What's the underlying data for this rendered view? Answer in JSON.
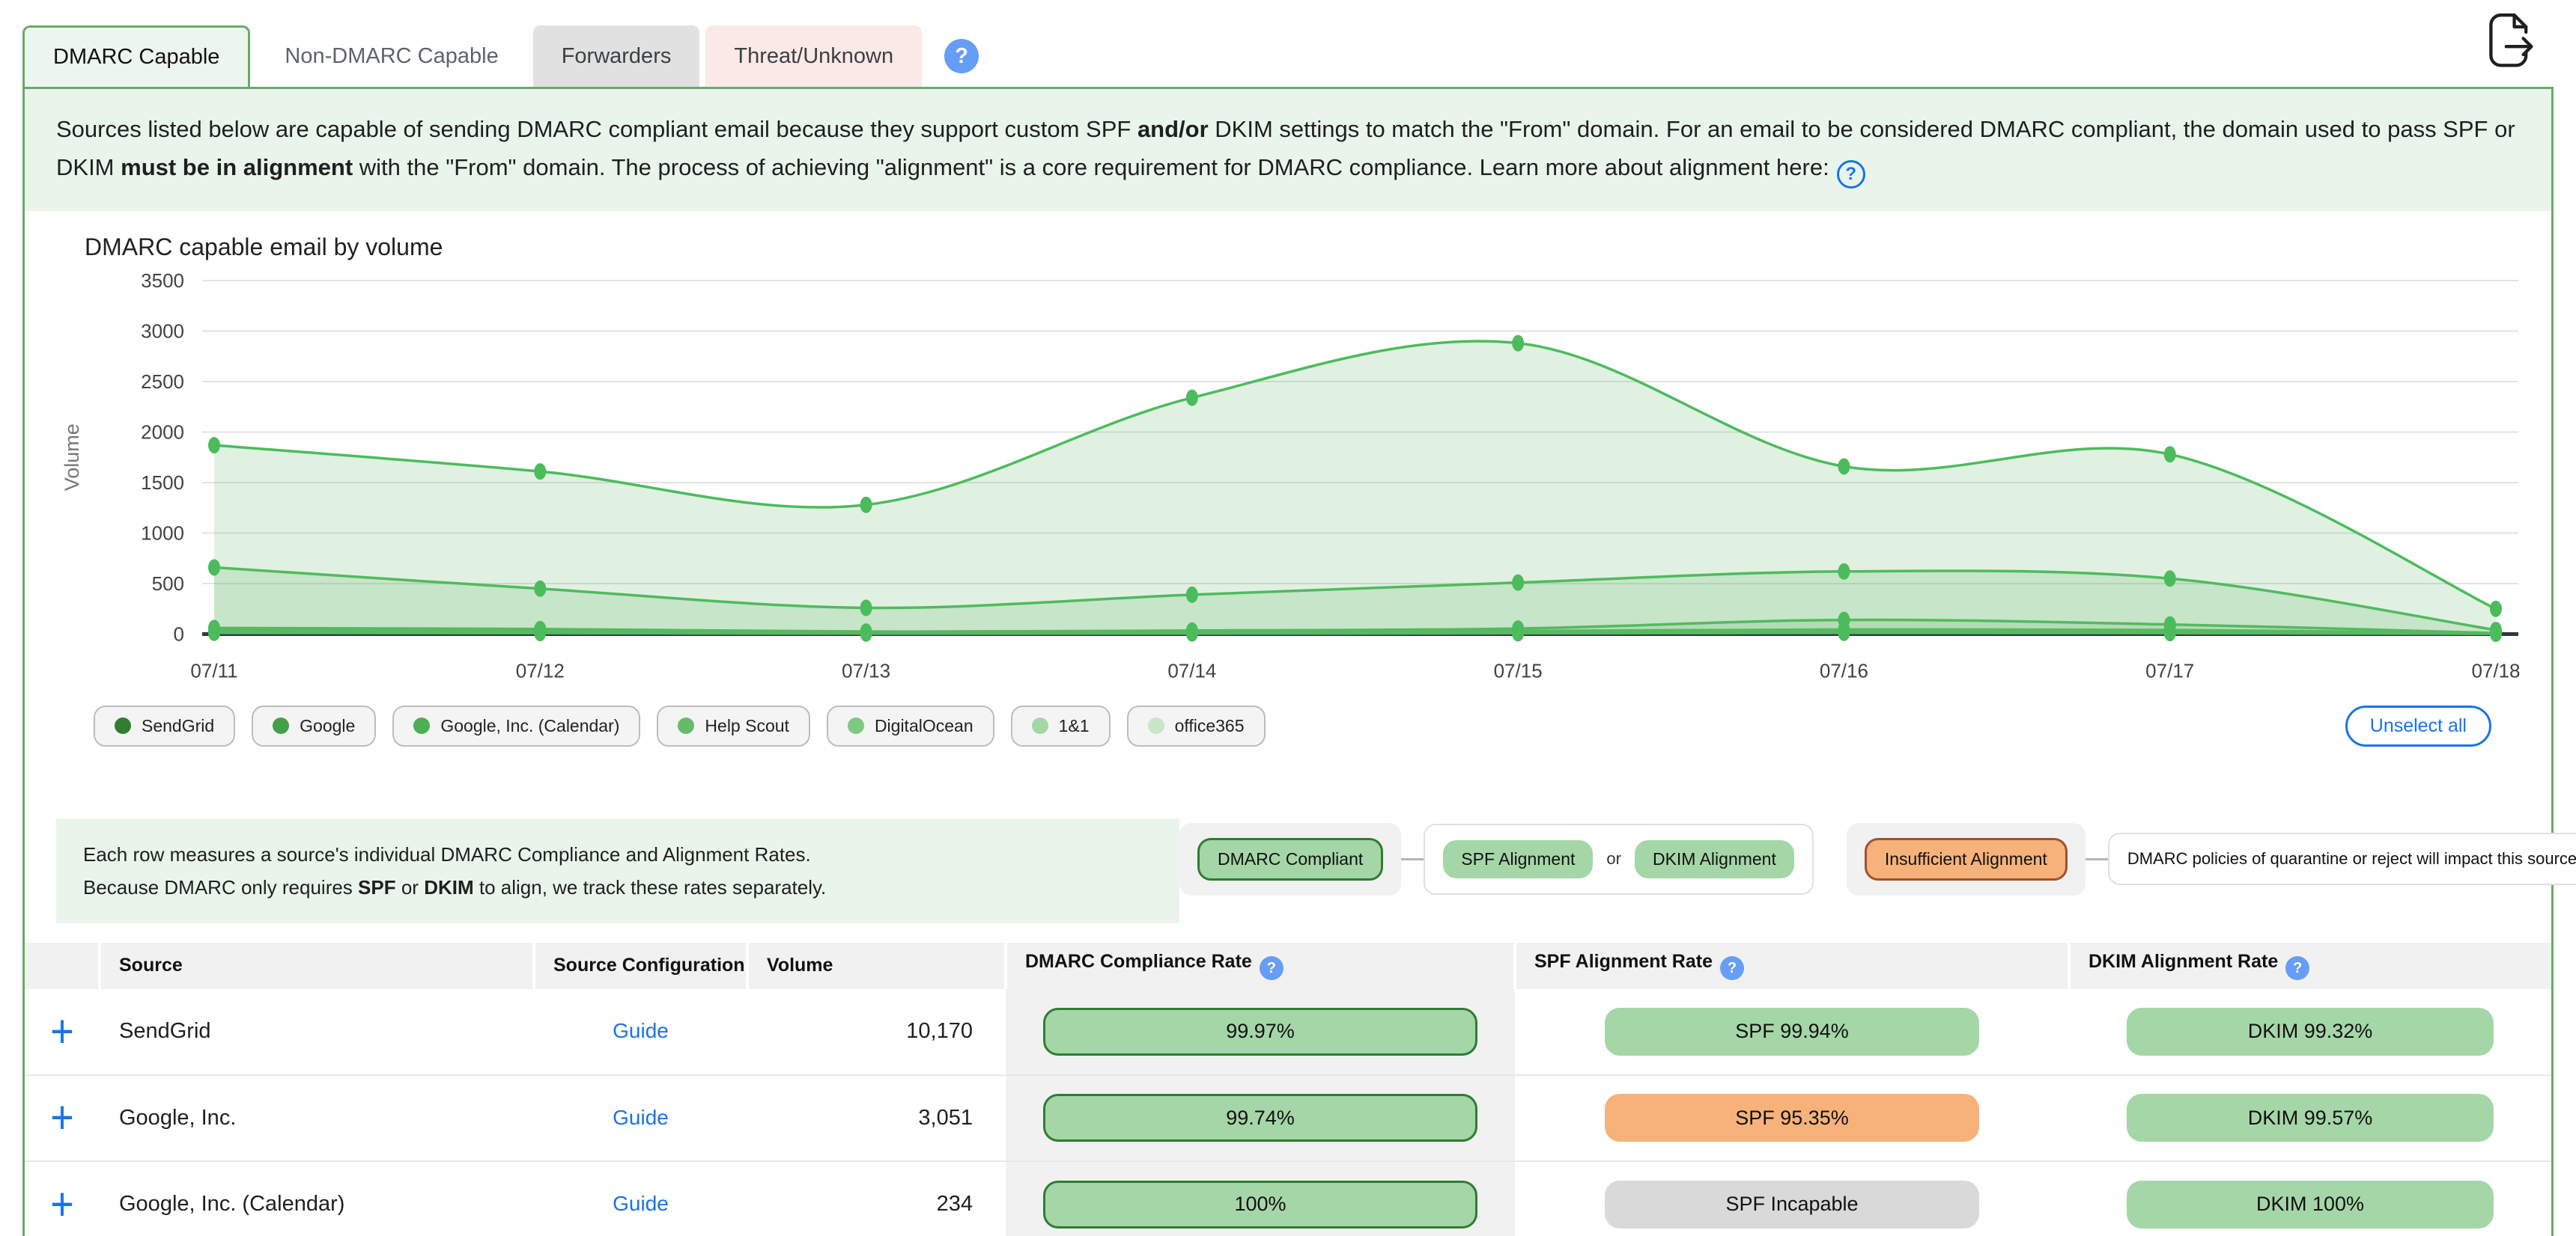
{
  "colors": {
    "frame_green": "#6aa96d",
    "help_blue": "#669df6",
    "link_blue": "#1a73e8",
    "pill_green": "#a5d6a7",
    "pill_green_border": "#2e7d32",
    "pill_orange": "#f6b27a",
    "pill_orange_border": "#a0522d",
    "pill_gray": "#d9d9d9",
    "chart_green": "#4cbb5c"
  },
  "tabs": [
    {
      "label": "DMARC Capable",
      "state": "active"
    },
    {
      "label": "Non-DMARC Capable",
      "state": "plain"
    },
    {
      "label": "Forwarders",
      "state": "gray"
    },
    {
      "label": "Threat/Unknown",
      "state": "pink"
    }
  ],
  "help_glyph": "?",
  "intro": {
    "p1": "Sources listed below are capable of sending DMARC compliant email because they support custom SPF ",
    "b1": "and/or",
    "p2": " DKIM settings to match the \"From\" domain. For an email to be considered DMARC compliant, the domain used to pass SPF or DKIM ",
    "b2": "must be in alignment",
    "p3": " with the \"From\" domain. The process of achieving \"alignment\" is a core requirement for DMARC compliance. Learn more about alignment here:"
  },
  "chart_data": {
    "type": "area",
    "title": "DMARC capable email by volume",
    "ylabel": "Volume",
    "xlabel": "",
    "ylim": [
      0,
      3500
    ],
    "ytick_step": 500,
    "grid": true,
    "legend_position": "bottom",
    "line_color": "#4cbb5c",
    "fill_color": "rgba(102,187,106,0.20)",
    "categories": [
      "07/11",
      "07/12",
      "07/13",
      "07/14",
      "07/15",
      "07/16",
      "07/17",
      "07/18"
    ],
    "series": [
      {
        "name": "SendGrid",
        "values": [
          1870,
          1610,
          1280,
          2340,
          2880,
          1660,
          1780,
          250
        ]
      },
      {
        "name": "Google",
        "values": [
          660,
          450,
          260,
          390,
          510,
          620,
          550,
          40
        ]
      },
      {
        "name": "Google, Inc. (Calendar)",
        "values": [
          60,
          50,
          25,
          35,
          55,
          140,
          95,
          10
        ]
      },
      {
        "name": "Help Scout",
        "values": [
          40,
          35,
          15,
          20,
          30,
          45,
          40,
          8
        ]
      },
      {
        "name": "DigitalOcean",
        "values": [
          30,
          25,
          10,
          15,
          20,
          30,
          25,
          5
        ]
      },
      {
        "name": "1&1",
        "values": [
          20,
          15,
          8,
          10,
          12,
          18,
          15,
          4
        ]
      },
      {
        "name": "office365",
        "values": [
          12,
          10,
          5,
          6,
          8,
          12,
          10,
          3
        ]
      }
    ]
  },
  "legend": {
    "chips": [
      {
        "label": "SendGrid",
        "color": "#2e7d32"
      },
      {
        "label": "Google",
        "color": "#43a047"
      },
      {
        "label": "Google, Inc. (Calendar)",
        "color": "#4caf50"
      },
      {
        "label": "Help Scout",
        "color": "#66bb6a"
      },
      {
        "label": "DigitalOcean",
        "color": "#81c784"
      },
      {
        "label": "1&1",
        "color": "#a5d6a7"
      },
      {
        "label": "office365",
        "color": "#c8e6c9"
      }
    ],
    "unselect_all": "Unselect all"
  },
  "note": {
    "line1": "Each row measures a source's individual DMARC Compliance and Alignment Rates.",
    "line2a": "Because DMARC only requires ",
    "b1": "SPF",
    "line2b": " or ",
    "b2": "DKIM",
    "line2c": " to align, we track these rates separately."
  },
  "rate_legend": {
    "dmarc_compliant": "DMARC Compliant",
    "spf_alignment": "SPF Alignment",
    "or": "or",
    "dkim_alignment": "DKIM Alignment",
    "insufficient": "Insufficient Alignment",
    "impact_note": "DMARC policies of quarantine or reject will impact this source"
  },
  "table": {
    "headers": {
      "source": "Source",
      "config": "Source Configuration",
      "volume": "Volume",
      "dmarc": "DMARC Compliance Rate",
      "spf": "SPF Alignment Rate",
      "dkim": "DKIM Alignment Rate"
    },
    "rows": [
      {
        "source": "SendGrid",
        "config": "Guide",
        "volume": "10,170",
        "compliance": "99.97%",
        "compliance_status": "green",
        "spf": "SPF 99.94%",
        "spf_status": "green",
        "dkim": "DKIM 99.32%",
        "dkim_status": "green"
      },
      {
        "source": "Google, Inc.",
        "config": "Guide",
        "volume": "3,051",
        "compliance": "99.74%",
        "compliance_status": "green",
        "spf": "SPF 95.35%",
        "spf_status": "orange",
        "dkim": "DKIM 99.57%",
        "dkim_status": "green"
      },
      {
        "source": "Google, Inc. (Calendar)",
        "config": "Guide",
        "volume": "234",
        "compliance": "100%",
        "compliance_status": "green",
        "spf": "SPF Incapable",
        "spf_status": "gray",
        "dkim": "DKIM 100%",
        "dkim_status": "green"
      }
    ]
  }
}
